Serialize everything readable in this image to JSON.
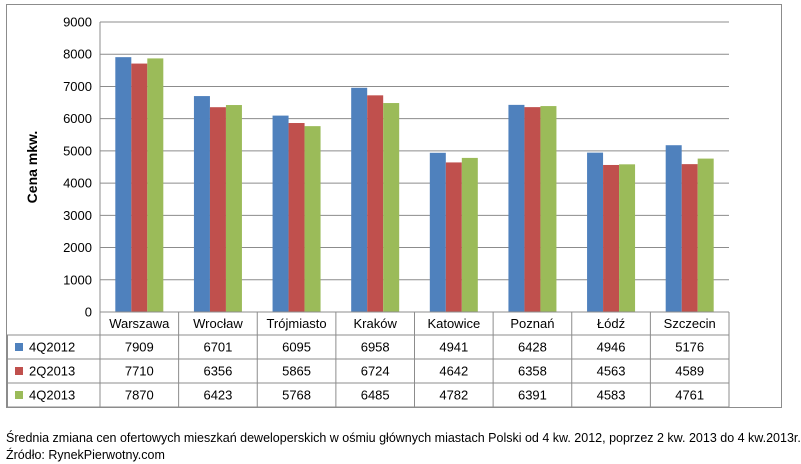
{
  "chart_data": {
    "type": "bar",
    "title": "",
    "ylabel": "Cena mkw.",
    "xlabel": "",
    "ylim": [
      0,
      9000
    ],
    "yticks": [
      0,
      1000,
      2000,
      3000,
      4000,
      5000,
      6000,
      7000,
      8000,
      9000
    ],
    "grid": true,
    "legend": "data-table",
    "categories": [
      "Warszawa",
      "Wrocław",
      "Trójmiasto",
      "Kraków",
      "Katowice",
      "Poznań",
      "Łódź",
      "Szczecin"
    ],
    "series": [
      {
        "name": "4Q2012",
        "color": "#4f81bd",
        "values": [
          7909,
          6701,
          6095,
          6958,
          4941,
          6428,
          4946,
          5176
        ]
      },
      {
        "name": "2Q2013",
        "color": "#c0504d",
        "values": [
          7710,
          6356,
          5865,
          6724,
          4642,
          6358,
          4563,
          4589
        ]
      },
      {
        "name": "4Q2013",
        "color": "#9bbb59",
        "values": [
          7870,
          6423,
          5768,
          6485,
          4782,
          6391,
          4583,
          4761
        ]
      }
    ]
  },
  "caption": {
    "line1": "Średnia zmiana cen ofertowych mieszkań deweloperskich w ośmiu głównych miastach Polski od 4 kw. 2012, poprzez 2 kw. 2013 do 4 kw.2013r.",
    "line2": "Źródło: RynekPierwotny.com"
  }
}
